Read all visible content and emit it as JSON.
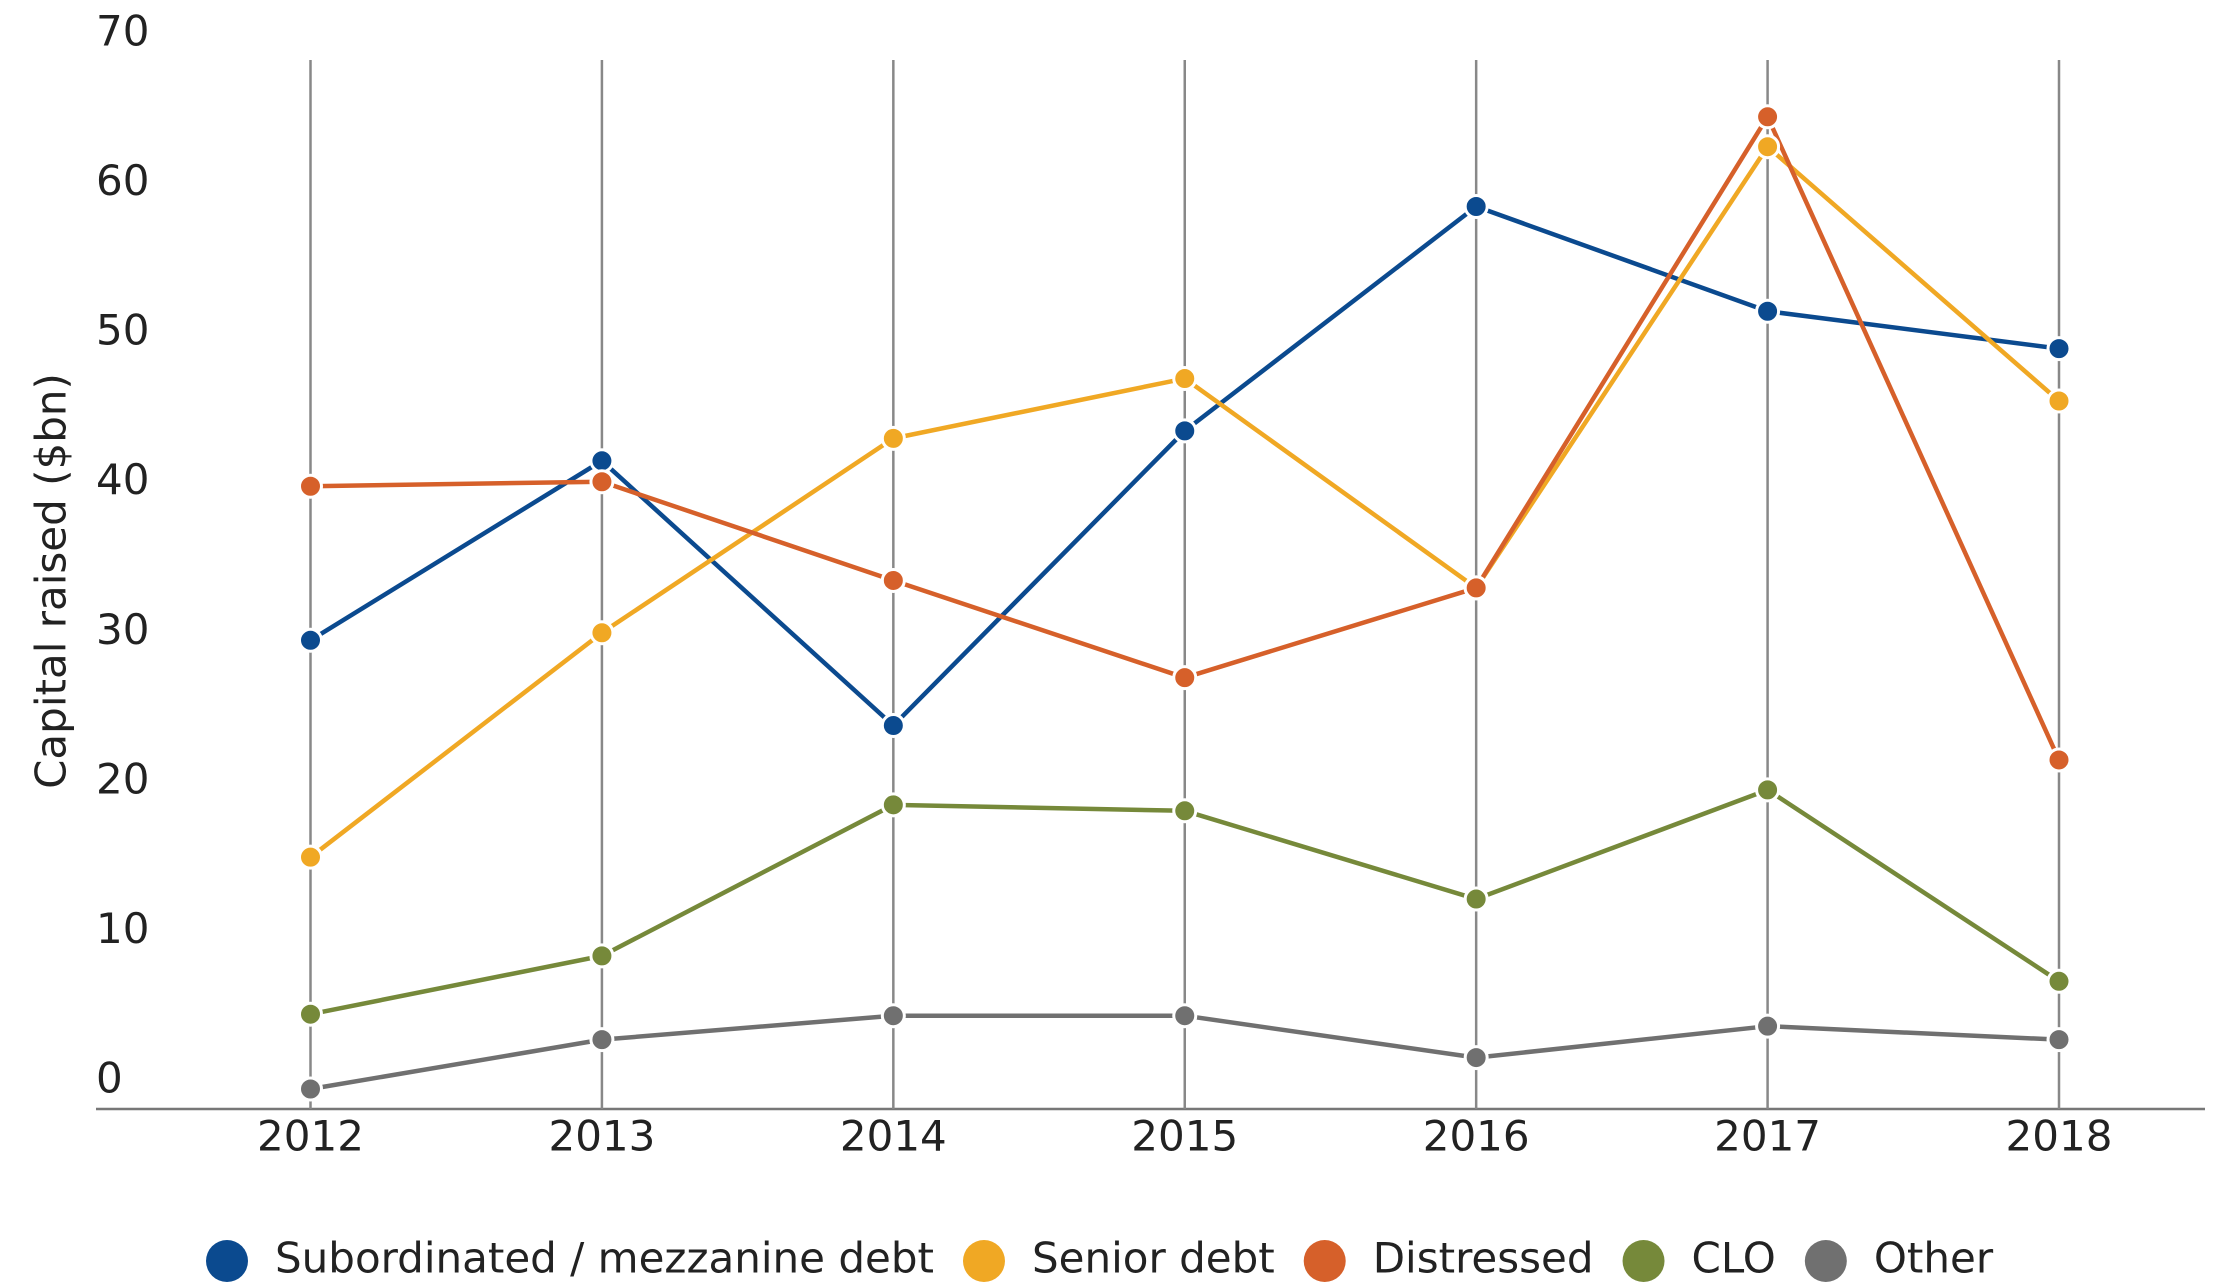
{
  "chart_data": {
    "type": "line",
    "y_axis_label": "Capital raised ($bn)",
    "categories": [
      "2012",
      "2013",
      "2014",
      "2015",
      "2016",
      "2017",
      "2018"
    ],
    "series": [
      {
        "name": "Subordinated / mezzanine debt",
        "color": "#0b4a8f",
        "values": [
          30,
          42,
          24.3,
          44,
          59,
          52,
          49.5
        ]
      },
      {
        "name": "Senior debt",
        "color": "#f0a824",
        "values": [
          15.5,
          30.5,
          43.5,
          47.5,
          33.5,
          63,
          46
        ]
      },
      {
        "name": "Distressed",
        "color": "#d6602a",
        "values": [
          40.3,
          40.6,
          34,
          27.5,
          33.5,
          65,
          22
        ]
      },
      {
        "name": "CLO",
        "color": "#76893a",
        "values": [
          5,
          8.9,
          19,
          18.6,
          12.7,
          20,
          7.2
        ]
      },
      {
        "name": "Other",
        "color": "#707070",
        "values": [
          0,
          3.3,
          4.9,
          4.9,
          2.1,
          4.2,
          3.3
        ]
      }
    ],
    "ylim": [
      0,
      70
    ],
    "yticks": [
      0,
      10,
      20,
      30,
      40,
      50,
      60,
      70
    ],
    "legend": "bottom"
  }
}
